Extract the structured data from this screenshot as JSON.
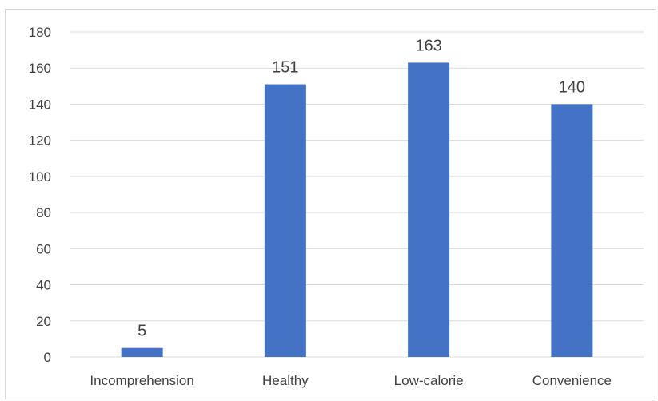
{
  "chart_data": {
    "type": "bar",
    "title": "",
    "xlabel": "",
    "ylabel": "",
    "categories": [
      "Incomprehension",
      "Healthy",
      "Low-calorie",
      "Convenience"
    ],
    "values": [
      5,
      151,
      163,
      140
    ],
    "ylim": [
      0,
      180
    ],
    "yticks": [
      0,
      20,
      40,
      60,
      80,
      100,
      120,
      140,
      160,
      180
    ],
    "data_labels": [
      "5",
      "151",
      "163",
      "140"
    ],
    "grid": true,
    "legend": "none",
    "colors": {
      "bar": "#4472c4",
      "grid": "#d9d9d9",
      "text": "#404040",
      "border": "#d9d9d9"
    }
  }
}
